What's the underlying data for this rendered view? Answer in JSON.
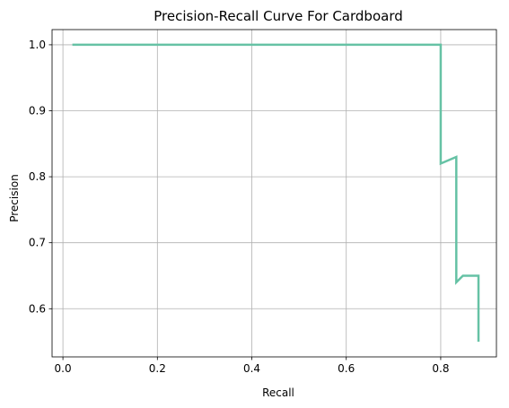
{
  "chart_data": {
    "type": "line",
    "title": "Precision-Recall Curve For Cardboard",
    "xlabel": "Recall",
    "ylabel": "Precision",
    "xlim": [
      -0.023,
      0.918
    ],
    "ylim": [
      0.527,
      1.023
    ],
    "grid": true,
    "xticks": [
      0.0,
      0.2,
      0.4,
      0.6,
      0.8
    ],
    "xtick_labels": [
      "0.0",
      "0.2",
      "0.4",
      "0.6",
      "0.8"
    ],
    "yticks": [
      0.6,
      0.7,
      0.8,
      0.9,
      1.0
    ],
    "ytick_labels": [
      "0.6",
      "0.7",
      "0.8",
      "0.9",
      "1.0"
    ],
    "series": [
      {
        "color": "#66c2a5",
        "x": [
          0.02,
          0.8,
          0.8,
          0.8,
          0.833,
          0.833,
          0.833,
          0.847,
          0.88,
          0.88,
          0.88
        ],
        "y": [
          1.0,
          1.0,
          0.9,
          0.82,
          0.83,
          0.75,
          0.64,
          0.65,
          0.65,
          0.6,
          0.55
        ]
      }
    ]
  }
}
